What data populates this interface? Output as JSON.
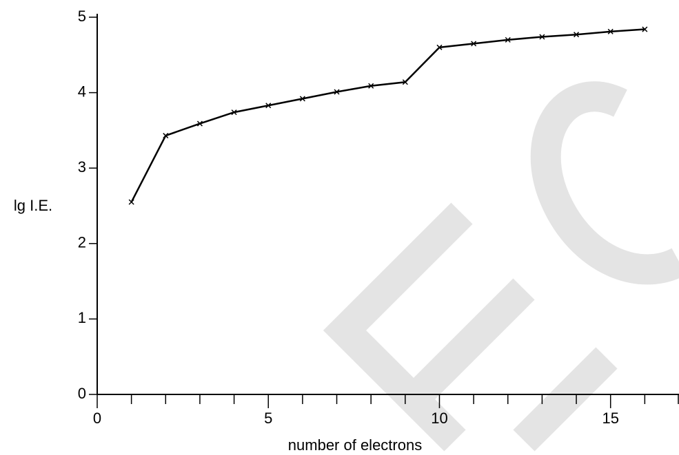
{
  "chart_data": {
    "type": "line",
    "x_label": "number of electrons",
    "y_label": "lg I.E.",
    "x": [
      1,
      2,
      3,
      4,
      5,
      6,
      7,
      8,
      9,
      10,
      11,
      12,
      13,
      14,
      15,
      16
    ],
    "series": [
      {
        "color": "#000000",
        "values": [
          2.55,
          3.43,
          3.59,
          3.74,
          3.83,
          3.92,
          4.01,
          4.09,
          4.14,
          4.6,
          4.65,
          4.7,
          4.74,
          4.77,
          4.81,
          4.84
        ]
      }
    ],
    "xlim": [
      0,
      17
    ],
    "ylim": [
      0,
      5
    ],
    "xticks": [
      0,
      5,
      10,
      15
    ],
    "xminorticks": [
      1,
      2,
      3,
      4,
      6,
      7,
      8,
      9,
      11,
      12,
      13,
      14,
      16,
      17
    ],
    "yticks": [
      0,
      1,
      2,
      3,
      4,
      5
    ]
  }
}
